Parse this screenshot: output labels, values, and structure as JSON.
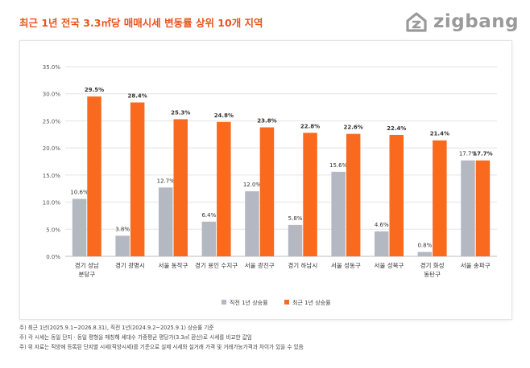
{
  "header": {
    "title": "최근 1년 전국 3.3㎡당 매매시세 변동률 상위 10개 지역",
    "logo_text": "zigbang",
    "logo_icon": "zigbang-house-icon"
  },
  "chart_data": {
    "type": "bar",
    "title": "",
    "xlabel": "",
    "ylabel": "",
    "categories": [
      [
        "경기 성남",
        "분당구"
      ],
      [
        "경기 광명시"
      ],
      [
        "서울 동작구"
      ],
      [
        "경기 용인 수지구"
      ],
      [
        "서울 광진구"
      ],
      [
        "경기 하남시"
      ],
      [
        "서울 성동구"
      ],
      [
        "서울 성북구"
      ],
      [
        "경기 화성",
        "동탄구"
      ],
      [
        "서울 송파구"
      ]
    ],
    "series": [
      {
        "name": "직전 1년 상승률",
        "values": [
          10.6,
          3.8,
          12.7,
          6.4,
          12.0,
          5.8,
          15.6,
          4.6,
          0.8,
          17.7
        ],
        "labels": [
          "10.6%",
          "3.8%",
          "12.7%",
          "6.4%",
          "12.0%",
          "5.8%",
          "15.6%",
          "4.6%",
          "0.8%",
          "17.7%"
        ],
        "color": "#b4b8c2"
      },
      {
        "name": "최근 1년 상승률",
        "values": [
          29.5,
          28.4,
          25.3,
          24.8,
          23.8,
          22.8,
          22.6,
          22.4,
          21.4,
          17.7
        ],
        "labels": [
          "29.5%",
          "28.4%",
          "25.3%",
          "24.8%",
          "23.8%",
          "22.8%",
          "22.6%",
          "22.4%",
          "21.4%",
          "17.7%"
        ],
        "color": "#fa6a1e"
      }
    ],
    "ylim": [
      0,
      35
    ],
    "yticks": [
      0,
      5,
      10,
      15,
      20,
      25,
      30,
      35
    ],
    "ytick_labels": [
      "0.0%",
      "5.0%",
      "10.0%",
      "15.0%",
      "20.0%",
      "25.0%",
      "30.0%",
      "35.0%"
    ],
    "grid": true,
    "legend_position": "bottom"
  },
  "notes": [
    "주) 최근 1년(2025.9.1~2026.8.31), 직전 1년(2024.9.2~2025.9.1) 상승률 기준",
    "주) 각 시세는 동일 단지 · 동일 평형을 매칭해 세대수 가중평균 평당가(3.3㎡ 환산)로 시세를 비교한 값임",
    "주) 위 자료는 직방에 등록된 단지별 시세(직방시세)를 기준으로 실제 시세와 실거래 가격 및 거래가능가격과 차이가 있을 수 있음"
  ]
}
